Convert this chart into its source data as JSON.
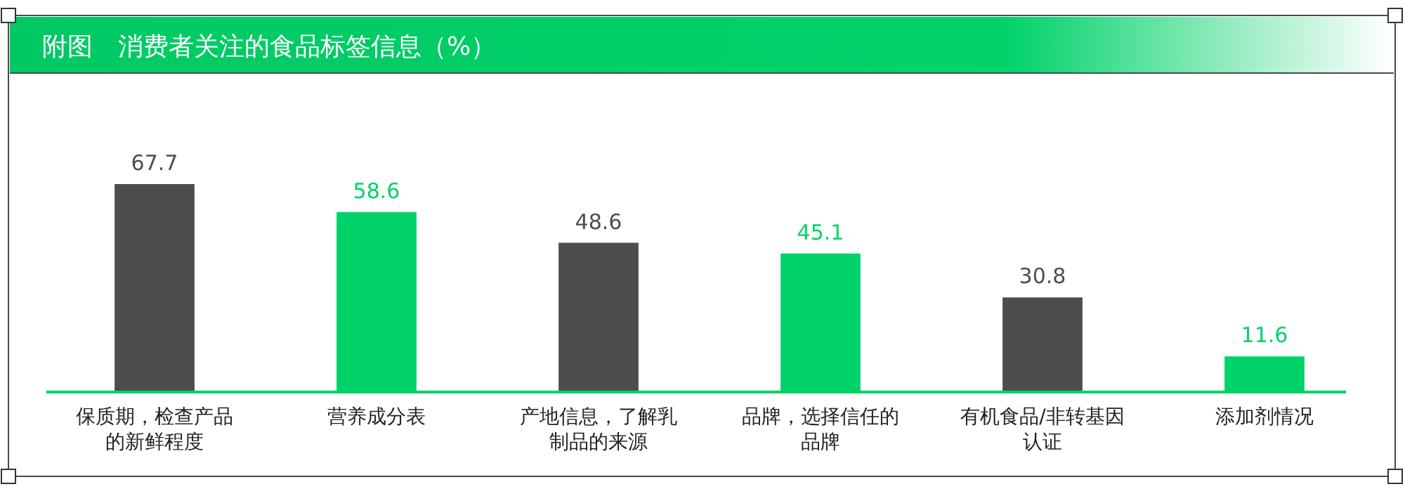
{
  "chart_data": {
    "type": "bar",
    "title": "附图　消费者关注的食品标签信息（%）",
    "categories": [
      "保质期，检查产品的新鲜程度",
      "营养成分表",
      "产地信息，了解乳制品的来源",
      "品牌，选择信任的品牌",
      "有机食品/非转基因认证",
      "添加剂情况"
    ],
    "values": [
      67.7,
      58.6,
      48.6,
      45.1,
      30.8,
      11.6
    ],
    "colors": [
      "#4d4d4f",
      "#00d26a",
      "#4d4d4f",
      "#00d26a",
      "#4d4d4f",
      "#00d26a"
    ],
    "data_labels": true
  }
}
